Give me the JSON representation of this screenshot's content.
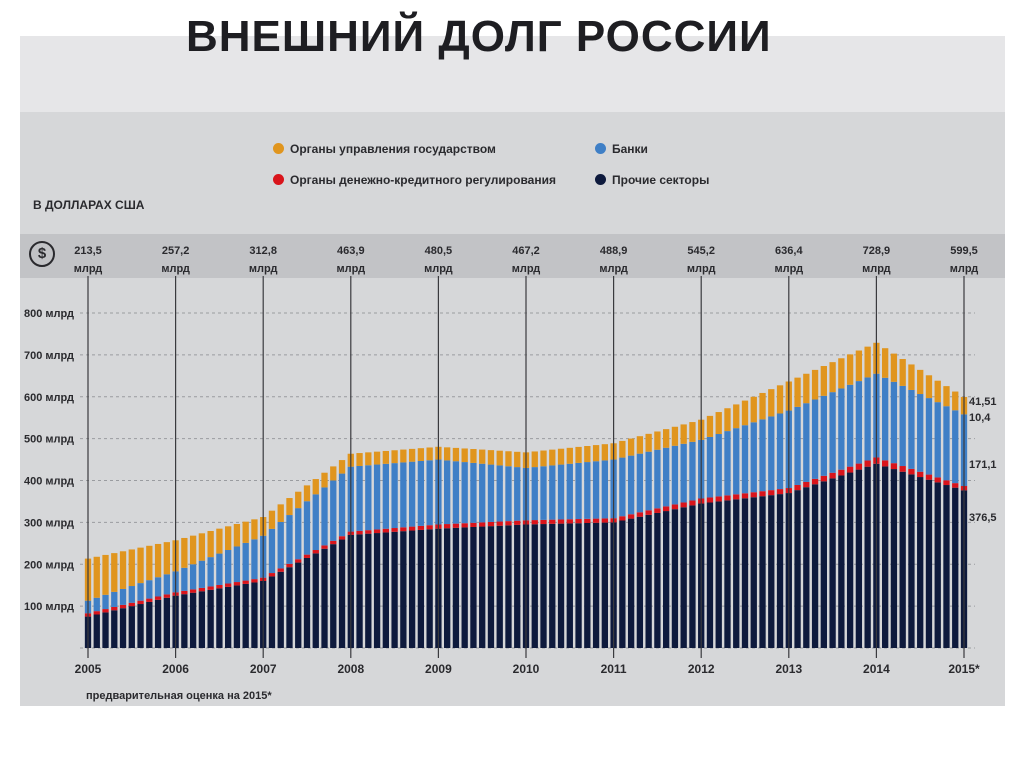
{
  "title": "ВНЕШНИЙ ДОЛГ РОССИИ",
  "unit_label": "В ДОЛЛАРАХ США",
  "footnote": "предварительная оценка на 2015*",
  "icons": {
    "currency": "dollar-icon"
  },
  "legend": [
    {
      "label": "Органы управления государством",
      "color": "#e0951e"
    },
    {
      "label": "Банки",
      "color": "#3f7fc6"
    },
    {
      "label": "Органы денежно-кредитного регулирования",
      "color": "#d9141b"
    },
    {
      "label": "Прочие секторы",
      "color": "#0e1a3d"
    }
  ],
  "chart_data": {
    "type": "area",
    "stacked": true,
    "x": [
      "2005",
      "2006",
      "2007",
      "2008",
      "2009",
      "2010",
      "2011",
      "2012",
      "2013",
      "2014",
      "2015*"
    ],
    "ylim": [
      0,
      800
    ],
    "yticks": [
      {
        "value": 100,
        "label": "100 млрд"
      },
      {
        "value": 200,
        "label": "200 млрд"
      },
      {
        "value": 300,
        "label": "300 млрд"
      },
      {
        "value": 400,
        "label": "400 млрд"
      },
      {
        "value": 500,
        "label": "500 млрд"
      },
      {
        "value": 600,
        "label": "600 млрд"
      },
      {
        "value": 700,
        "label": "700 млрд"
      },
      {
        "value": 800,
        "label": "800 млрд"
      }
    ],
    "totals": [
      {
        "value": "213,5",
        "unit": "млрд"
      },
      {
        "value": "257,2",
        "unit": "млрд"
      },
      {
        "value": "312,8",
        "unit": "млрд"
      },
      {
        "value": "463,9",
        "unit": "млрд"
      },
      {
        "value": "480,5",
        "unit": "млрд"
      },
      {
        "value": "467,2",
        "unit": "млрд"
      },
      {
        "value": "488,9",
        "unit": "млрд"
      },
      {
        "value": "545,2",
        "unit": "млрд"
      },
      {
        "value": "636,4",
        "unit": "млрд"
      },
      {
        "value": "728,9",
        "unit": "млрд"
      },
      {
        "value": "599,5",
        "unit": "млрд"
      }
    ],
    "series": [
      {
        "name": "Прочие секторы",
        "color": "#0e1a3d",
        "values": [
          75,
          125,
          160,
          270,
          285,
          295,
          300,
          345,
          370,
          440,
          376.5
        ]
      },
      {
        "name": "Органы денежно-кредитного регулирования",
        "color": "#d9141b",
        "values": [
          8,
          8,
          8,
          8,
          10,
          10,
          10,
          12,
          12,
          15,
          10.4
        ]
      },
      {
        "name": "Банки",
        "color": "#3f7fc6",
        "values": [
          30,
          50,
          100,
          155,
          155,
          125,
          140,
          140,
          185,
          200,
          171.1
        ]
      },
      {
        "name": "Органы управления государством",
        "color": "#e0951e",
        "values": [
          100.5,
          74.2,
          44.8,
          30.9,
          30.5,
          37.2,
          38.9,
          48.2,
          69.4,
          73.9,
          41.51
        ]
      }
    ],
    "end_labels": [
      "41,51",
      "10,4",
      "171,1",
      "376,5"
    ],
    "grid": true
  }
}
